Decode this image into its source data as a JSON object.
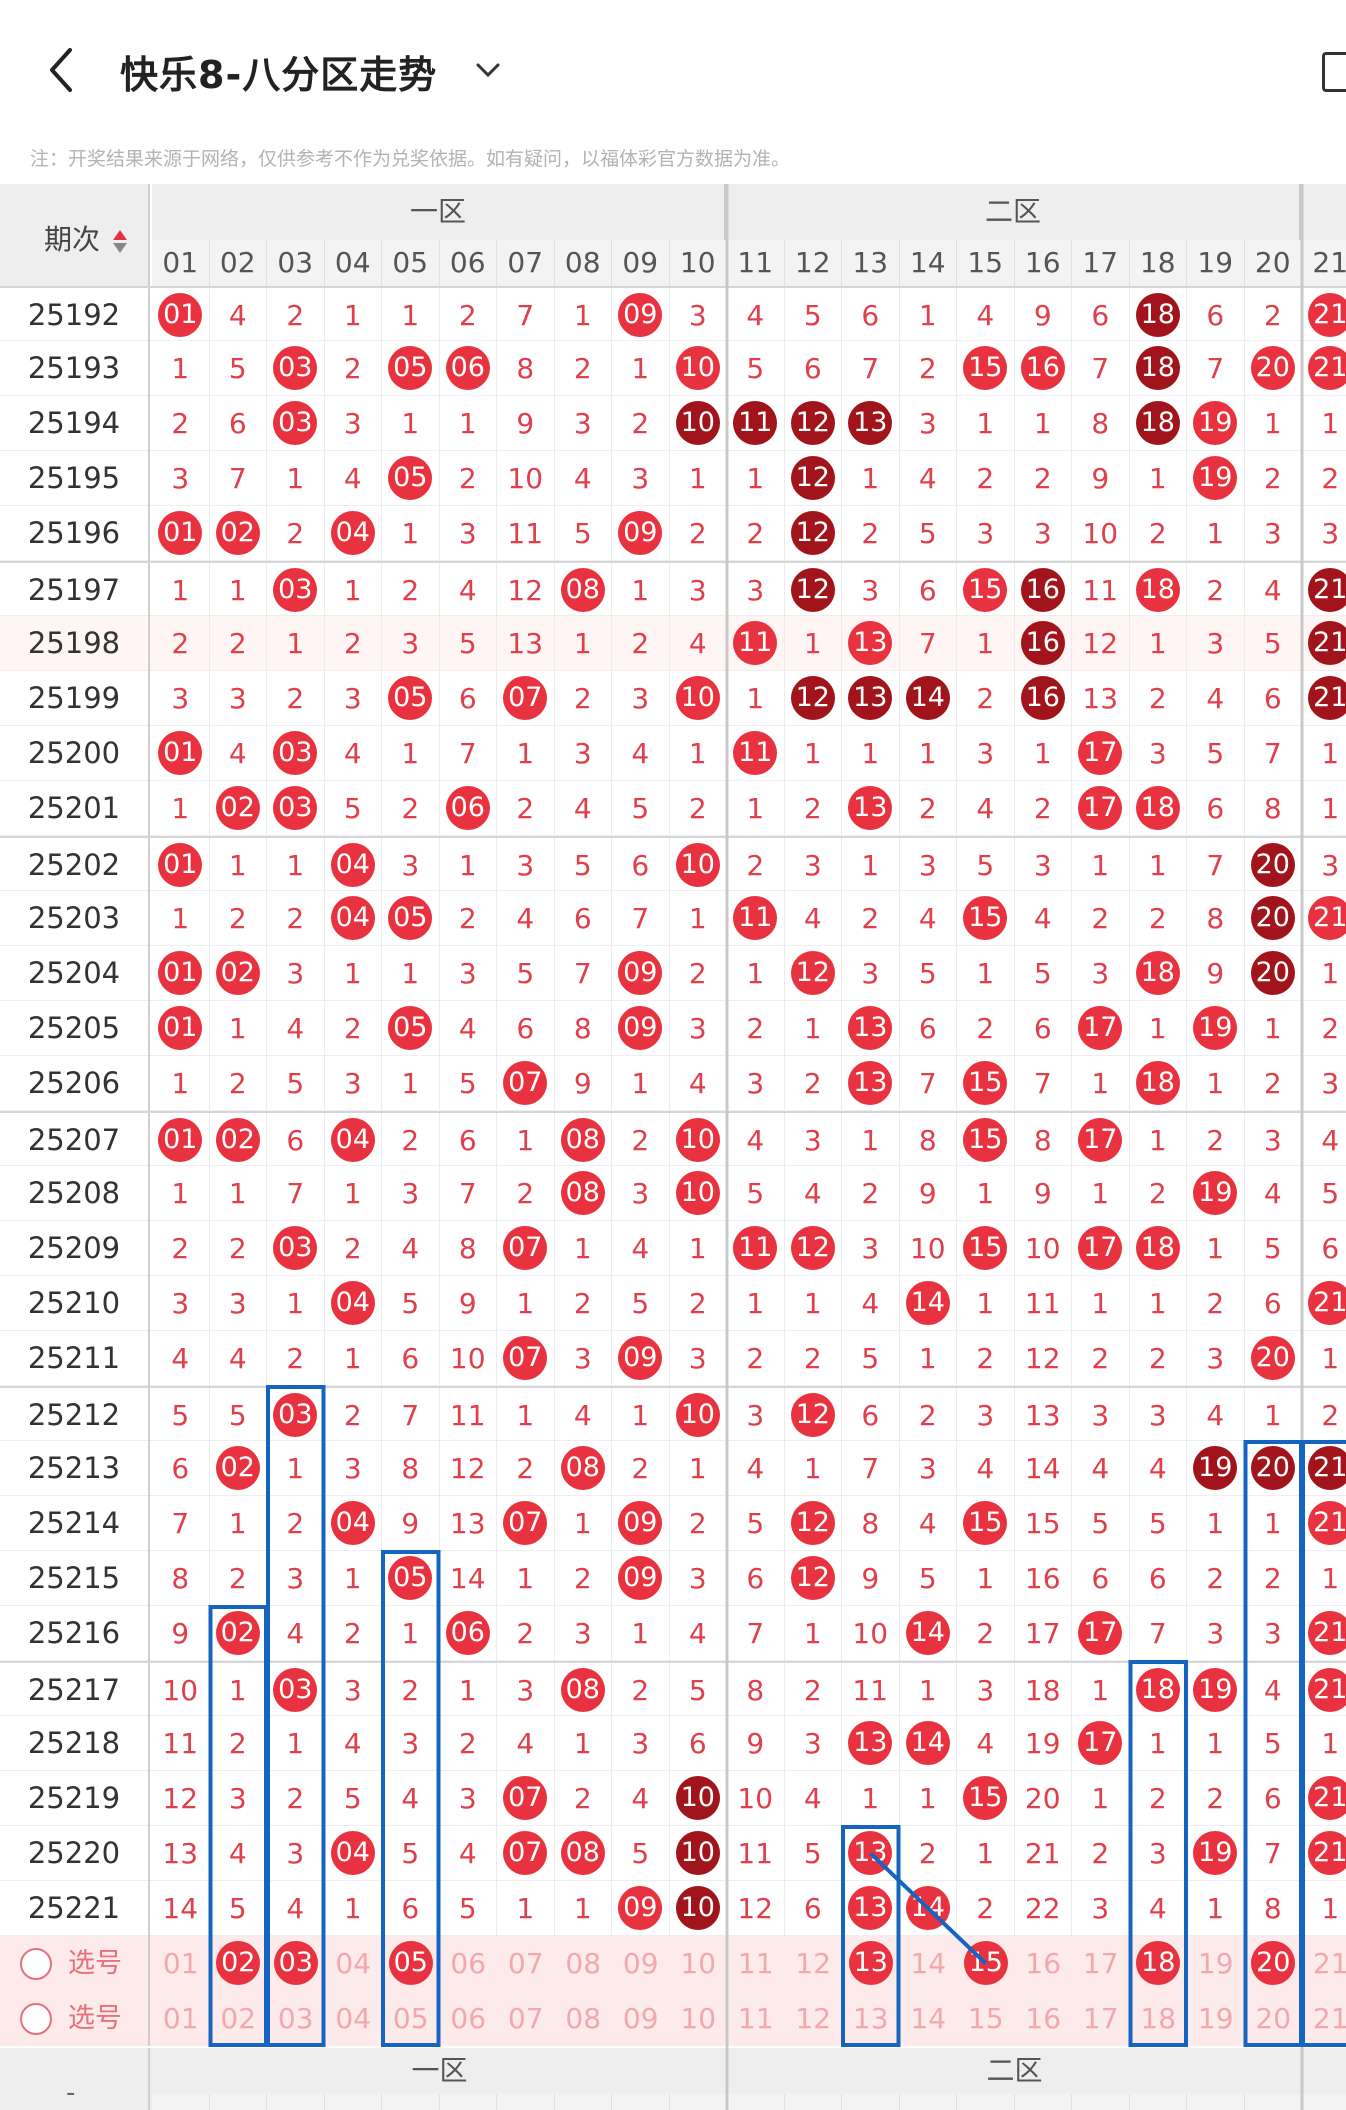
{
  "header": {
    "title": "快乐8-八分区走势"
  },
  "note": "注：开奖结果来源于网络，仅供参考不作为兑奖依据。如有疑问，以福体彩官方数据为准。",
  "table": {
    "period_header": "期次",
    "zones": [
      "一区",
      "二区"
    ],
    "number_headers": [
      "01",
      "02",
      "03",
      "04",
      "05",
      "06",
      "07",
      "08",
      "09",
      "10",
      "11",
      "12",
      "13",
      "14",
      "15",
      "16",
      "17",
      "18",
      "19",
      "20",
      "21"
    ],
    "rows": [
      {
        "period": "25192",
        "cells": [
          "b:01",
          "4",
          "2",
          "1",
          "1",
          "2",
          "7",
          "1",
          "b:09",
          "3",
          "4",
          "5",
          "6",
          "1",
          "4",
          "9",
          "6",
          "d:18",
          "6",
          "2",
          "b:21"
        ]
      },
      {
        "period": "25193",
        "cells": [
          "1",
          "5",
          "b:03",
          "2",
          "b:05",
          "b:06",
          "8",
          "2",
          "1",
          "b:10",
          "5",
          "6",
          "7",
          "2",
          "b:15",
          "b:16",
          "7",
          "d:18",
          "7",
          "b:20",
          "b:21"
        ]
      },
      {
        "period": "25194",
        "cells": [
          "2",
          "6",
          "b:03",
          "3",
          "1",
          "1",
          "9",
          "3",
          "2",
          "d:10",
          "d:11",
          "d:12",
          "d:13",
          "3",
          "1",
          "1",
          "8",
          "d:18",
          "b:19",
          "1",
          "1"
        ]
      },
      {
        "period": "25195",
        "cells": [
          "3",
          "7",
          "1",
          "4",
          "b:05",
          "2",
          "10",
          "4",
          "3",
          "1",
          "1",
          "d:12",
          "1",
          "4",
          "2",
          "2",
          "9",
          "1",
          "b:19",
          "2",
          "2"
        ]
      },
      {
        "period": "25196",
        "cells": [
          "b:01",
          "b:02",
          "2",
          "b:04",
          "1",
          "3",
          "11",
          "5",
          "b:09",
          "2",
          "2",
          "d:12",
          "2",
          "5",
          "3",
          "3",
          "10",
          "2",
          "1",
          "3",
          "3"
        ]
      },
      {
        "period": "25197",
        "cells": [
          "1",
          "1",
          "b:03",
          "1",
          "2",
          "4",
          "12",
          "b:08",
          "1",
          "3",
          "3",
          "d:12",
          "3",
          "6",
          "b:15",
          "d:16",
          "11",
          "b:18",
          "2",
          "4",
          "d:21"
        ]
      },
      {
        "period": "25198",
        "cells": [
          "2",
          "2",
          "1",
          "2",
          "3",
          "5",
          "13",
          "1",
          "2",
          "4",
          "b:11",
          "1",
          "b:13",
          "7",
          "1",
          "d:16",
          "12",
          "1",
          "3",
          "5",
          "d:21"
        ]
      },
      {
        "period": "25199",
        "cells": [
          "3",
          "3",
          "2",
          "3",
          "b:05",
          "6",
          "b:07",
          "2",
          "3",
          "b:10",
          "1",
          "d:12",
          "d:13",
          "d:14",
          "2",
          "d:16",
          "13",
          "2",
          "4",
          "6",
          "d:21"
        ]
      },
      {
        "period": "25200",
        "cells": [
          "b:01",
          "4",
          "b:03",
          "4",
          "1",
          "7",
          "1",
          "3",
          "4",
          "1",
          "b:11",
          "1",
          "1",
          "1",
          "3",
          "1",
          "b:17",
          "3",
          "5",
          "7",
          "1"
        ]
      },
      {
        "period": "25201",
        "cells": [
          "1",
          "b:02",
          "b:03",
          "5",
          "2",
          "b:06",
          "2",
          "4",
          "5",
          "2",
          "1",
          "2",
          "b:13",
          "2",
          "4",
          "2",
          "b:17",
          "b:18",
          "6",
          "8",
          "1"
        ]
      },
      {
        "period": "25202",
        "cells": [
          "b:01",
          "1",
          "1",
          "b:04",
          "3",
          "1",
          "3",
          "5",
          "6",
          "b:10",
          "2",
          "3",
          "1",
          "3",
          "5",
          "3",
          "1",
          "1",
          "7",
          "d:20",
          "3"
        ]
      },
      {
        "period": "25203",
        "cells": [
          "1",
          "2",
          "2",
          "b:04",
          "b:05",
          "2",
          "4",
          "6",
          "7",
          "1",
          "b:11",
          "4",
          "2",
          "4",
          "b:15",
          "4",
          "2",
          "2",
          "8",
          "d:20",
          "b:21"
        ]
      },
      {
        "period": "25204",
        "cells": [
          "b:01",
          "b:02",
          "3",
          "1",
          "1",
          "3",
          "5",
          "7",
          "b:09",
          "2",
          "1",
          "b:12",
          "3",
          "5",
          "1",
          "5",
          "3",
          "b:18",
          "9",
          "d:20",
          "1"
        ]
      },
      {
        "period": "25205",
        "cells": [
          "b:01",
          "1",
          "4",
          "2",
          "b:05",
          "4",
          "6",
          "8",
          "b:09",
          "3",
          "2",
          "1",
          "b:13",
          "6",
          "2",
          "6",
          "b:17",
          "1",
          "b:19",
          "1",
          "2"
        ]
      },
      {
        "period": "25206",
        "cells": [
          "1",
          "2",
          "5",
          "3",
          "1",
          "5",
          "b:07",
          "9",
          "1",
          "4",
          "3",
          "2",
          "b:13",
          "7",
          "b:15",
          "7",
          "1",
          "b:18",
          "1",
          "2",
          "3"
        ]
      },
      {
        "period": "25207",
        "cells": [
          "b:01",
          "b:02",
          "6",
          "b:04",
          "2",
          "6",
          "1",
          "b:08",
          "2",
          "b:10",
          "4",
          "3",
          "1",
          "8",
          "b:15",
          "8",
          "b:17",
          "1",
          "2",
          "3",
          "4"
        ]
      },
      {
        "period": "25208",
        "cells": [
          "1",
          "1",
          "7",
          "1",
          "3",
          "7",
          "2",
          "b:08",
          "3",
          "b:10",
          "5",
          "4",
          "2",
          "9",
          "1",
          "9",
          "1",
          "2",
          "b:19",
          "4",
          "5"
        ]
      },
      {
        "period": "25209",
        "cells": [
          "2",
          "2",
          "b:03",
          "2",
          "4",
          "8",
          "b:07",
          "1",
          "4",
          "1",
          "b:11",
          "b:12",
          "3",
          "10",
          "b:15",
          "10",
          "b:17",
          "b:18",
          "1",
          "5",
          "6"
        ]
      },
      {
        "period": "25210",
        "cells": [
          "3",
          "3",
          "1",
          "b:04",
          "5",
          "9",
          "1",
          "2",
          "5",
          "2",
          "1",
          "1",
          "4",
          "b:14",
          "1",
          "11",
          "1",
          "1",
          "2",
          "6",
          "b:21"
        ]
      },
      {
        "period": "25211",
        "cells": [
          "4",
          "4",
          "2",
          "1",
          "6",
          "10",
          "b:07",
          "3",
          "b:09",
          "3",
          "2",
          "2",
          "5",
          "1",
          "2",
          "12",
          "2",
          "2",
          "3",
          "b:20",
          "1"
        ]
      },
      {
        "period": "25212",
        "cells": [
          "5",
          "5",
          "b:03",
          "2",
          "7",
          "11",
          "1",
          "4",
          "1",
          "b:10",
          "3",
          "b:12",
          "6",
          "2",
          "3",
          "13",
          "3",
          "3",
          "4",
          "1",
          "2"
        ]
      },
      {
        "period": "25213",
        "cells": [
          "6",
          "b:02",
          "1",
          "3",
          "8",
          "12",
          "2",
          "b:08",
          "2",
          "1",
          "4",
          "1",
          "7",
          "3",
          "4",
          "14",
          "4",
          "4",
          "d:19",
          "d:20",
          "d:21"
        ]
      },
      {
        "period": "25214",
        "cells": [
          "7",
          "1",
          "2",
          "b:04",
          "9",
          "13",
          "b:07",
          "1",
          "b:09",
          "2",
          "5",
          "b:12",
          "8",
          "4",
          "b:15",
          "15",
          "5",
          "5",
          "1",
          "1",
          "b:21"
        ]
      },
      {
        "period": "25215",
        "cells": [
          "8",
          "2",
          "3",
          "1",
          "b:05",
          "14",
          "1",
          "2",
          "b:09",
          "3",
          "6",
          "b:12",
          "9",
          "5",
          "1",
          "16",
          "6",
          "6",
          "2",
          "2",
          "1"
        ]
      },
      {
        "period": "25216",
        "cells": [
          "9",
          "b:02",
          "4",
          "2",
          "1",
          "b:06",
          "2",
          "3",
          "1",
          "4",
          "7",
          "1",
          "10",
          "b:14",
          "2",
          "17",
          "b:17",
          "7",
          "3",
          "3",
          "b:21"
        ]
      },
      {
        "period": "25217",
        "cells": [
          "10",
          "1",
          "b:03",
          "3",
          "2",
          "1",
          "3",
          "b:08",
          "2",
          "5",
          "8",
          "2",
          "11",
          "1",
          "3",
          "18",
          "1",
          "b:18",
          "b:19",
          "4",
          "b:21"
        ]
      },
      {
        "period": "25218",
        "cells": [
          "11",
          "2",
          "1",
          "4",
          "3",
          "2",
          "4",
          "1",
          "3",
          "6",
          "9",
          "3",
          "b:13",
          "b:14",
          "4",
          "19",
          "b:17",
          "1",
          "1",
          "5",
          "1"
        ]
      },
      {
        "period": "25219",
        "cells": [
          "12",
          "3",
          "2",
          "5",
          "4",
          "3",
          "b:07",
          "2",
          "4",
          "d:10",
          "10",
          "4",
          "1",
          "1",
          "b:15",
          "20",
          "1",
          "2",
          "2",
          "6",
          "b:21"
        ]
      },
      {
        "period": "25220",
        "cells": [
          "13",
          "4",
          "3",
          "b:04",
          "5",
          "4",
          "b:07",
          "b:08",
          "5",
          "d:10",
          "11",
          "5",
          "b:13",
          "2",
          "1",
          "21",
          "2",
          "3",
          "b:19",
          "7",
          "b:21"
        ]
      },
      {
        "period": "25221",
        "cells": [
          "14",
          "5",
          "4",
          "1",
          "6",
          "5",
          "1",
          "1",
          "b:09",
          "d:10",
          "12",
          "6",
          "b:13",
          "b:14",
          "2",
          "22",
          "3",
          "4",
          "1",
          "8",
          "1"
        ]
      }
    ],
    "selection_rows": [
      {
        "label": "选号",
        "cells": [
          "01",
          "b:02",
          "b:03",
          "04",
          "b:05",
          "06",
          "07",
          "08",
          "09",
          "10",
          "11",
          "12",
          "b:13",
          "14",
          "b:15",
          "16",
          "17",
          "b:18",
          "19",
          "b:20",
          "21"
        ]
      },
      {
        "label": "选号",
        "cells": [
          "01",
          "02",
          "03",
          "04",
          "05",
          "06",
          "07",
          "08",
          "09",
          "10",
          "11",
          "12",
          "13",
          "14",
          "15",
          "16",
          "17",
          "18",
          "19",
          "20",
          "21"
        ]
      }
    ]
  },
  "colors": {
    "ball_red": "#e8323f",
    "ball_dark": "#a1141c",
    "highlight_box": "#1565c0"
  }
}
